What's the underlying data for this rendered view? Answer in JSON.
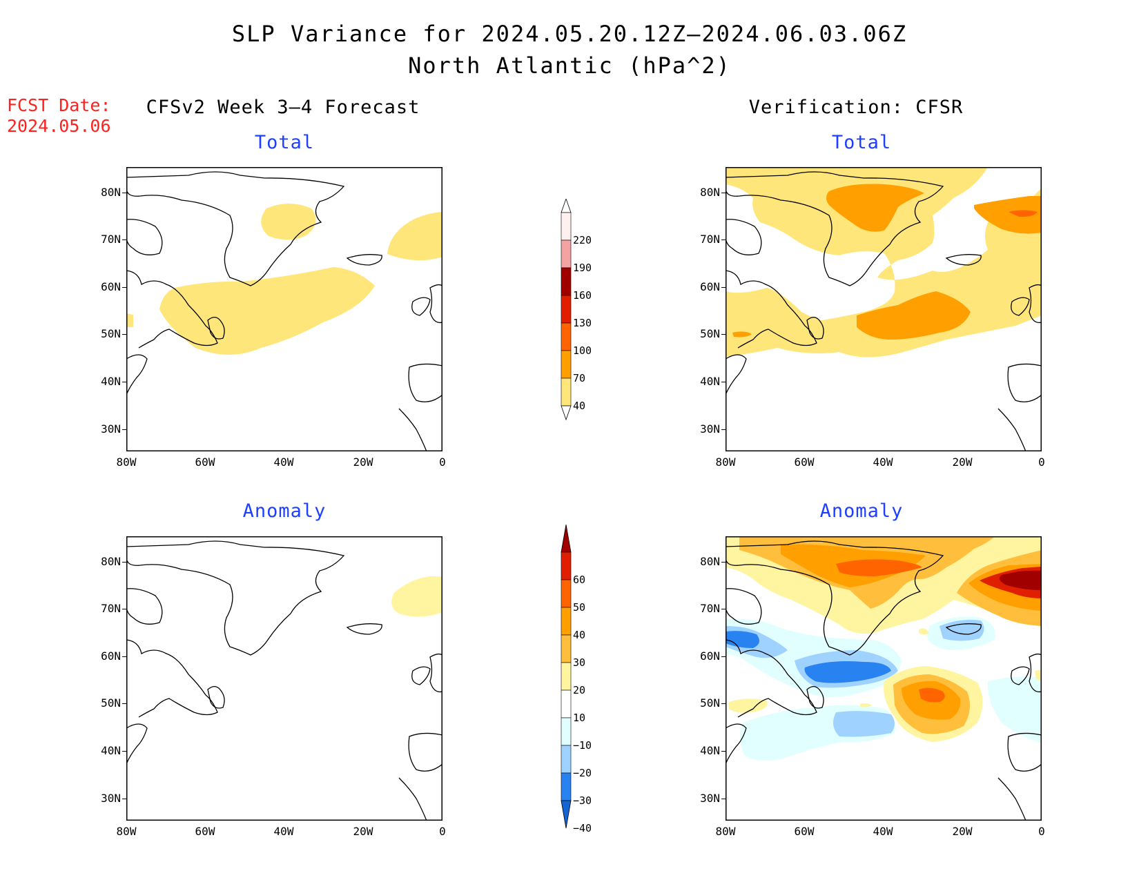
{
  "title": {
    "line1": "SLP Variance for 2024.05.20.12Z–2024.06.03.06Z",
    "line2": "North Atlantic (hPa^2)"
  },
  "fcst_date": {
    "label": "FCST Date:",
    "value": "2024.05.06"
  },
  "columns": {
    "left": "CFSv2 Week 3–4 Forecast",
    "right": "Verification: CFSR"
  },
  "panels": {
    "forecast_total": "Total",
    "verification_total": "Total",
    "forecast_anomaly": "Anomaly",
    "verification_anomaly": "Anomaly"
  },
  "axes": {
    "lat_labels": [
      "80N",
      "70N",
      "60N",
      "50N",
      "40N",
      "30N"
    ],
    "lon_labels": [
      "80W",
      "60W",
      "40W",
      "20W",
      "0"
    ]
  },
  "colorbar_total": {
    "labels": [
      "220",
      "190",
      "160",
      "130",
      "100",
      "70",
      "40"
    ],
    "colors": [
      "#fff0f0",
      "#f4a3a5",
      "#a00000",
      "#e01e00",
      "#ff6400",
      "#ffa000",
      "#ffe67a"
    ]
  },
  "colorbar_anomaly": {
    "labels": [
      "60",
      "50",
      "40",
      "30",
      "20",
      "10",
      "−10",
      "−20",
      "−30",
      "−40"
    ],
    "colors": [
      "#a00000",
      "#e01e00",
      "#ff6400",
      "#ffa000",
      "#ffbe3c",
      "#fff5a0",
      "#ffffff",
      "#e1ffff",
      "#a0d2ff",
      "#2882f0",
      "#1464d2"
    ]
  }
}
